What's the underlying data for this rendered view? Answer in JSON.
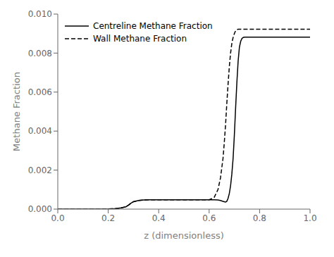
{
  "chart_data": {
    "type": "line",
    "xlabel": "z (dimensionless)",
    "ylabel": "Methane Fraction",
    "xlim": [
      0.0,
      1.0
    ],
    "ylim": [
      0.0,
      0.01
    ],
    "xticks": [
      {
        "value": 0.0,
        "label": "0.0"
      },
      0.2,
      0.4,
      0.6,
      0.8,
      {
        "value": 1.0,
        "label": "1.0"
      }
    ],
    "yticks": [
      {
        "value": 0.0,
        "label": "0.000"
      },
      {
        "value": 0.002,
        "label": "0.002"
      },
      {
        "value": 0.004,
        "label": "0.004"
      },
      {
        "value": 0.006,
        "label": "0.006"
      },
      {
        "value": 0.008,
        "label": "0.008"
      },
      {
        "value": 0.01,
        "label": "0.010"
      }
    ],
    "grid": false,
    "legend": "upper left",
    "series": [
      {
        "name": "Centreline Methane Fraction",
        "color": "#000000",
        "line_style": "solid",
        "x": [
          0.0,
          0.05,
          0.1,
          0.15,
          0.2,
          0.23,
          0.25,
          0.27,
          0.28,
          0.29,
          0.3,
          0.32,
          0.34,
          0.36,
          0.4,
          0.45,
          0.5,
          0.55,
          0.58,
          0.6,
          0.62,
          0.635,
          0.645,
          0.655,
          0.66,
          0.665,
          0.67,
          0.675,
          0.68,
          0.685,
          0.69,
          0.695,
          0.7,
          0.705,
          0.71,
          0.715,
          0.72,
          0.725,
          0.73,
          0.735,
          0.74,
          0.745,
          0.75,
          0.755,
          0.76,
          0.77,
          0.78,
          0.8,
          0.85,
          0.9,
          1.0
        ],
        "values": [
          0.0,
          0.0,
          0.0,
          0.0,
          1e-05,
          3e-05,
          6e-05,
          0.00012,
          0.0002,
          0.0003,
          0.00038,
          0.00044,
          0.00047,
          0.00048,
          0.00048,
          0.00048,
          0.00048,
          0.00048,
          0.00048,
          0.00048,
          0.00048,
          0.00047,
          0.00044,
          0.0004,
          0.00038,
          0.00036,
          0.0004,
          0.00055,
          0.0008,
          0.0012,
          0.0018,
          0.0026,
          0.0038,
          0.0052,
          0.0065,
          0.0076,
          0.0083,
          0.0086,
          0.00875,
          0.0088,
          0.00882,
          0.00882,
          0.00882,
          0.00882,
          0.00882,
          0.00882,
          0.00882,
          0.00882,
          0.00882,
          0.00882,
          0.00882
        ]
      },
      {
        "name": "Wall Methane Fraction",
        "color": "#000000",
        "line_style": "dashed",
        "x": [
          0.0,
          0.05,
          0.1,
          0.15,
          0.2,
          0.23,
          0.25,
          0.27,
          0.28,
          0.29,
          0.3,
          0.32,
          0.34,
          0.36,
          0.4,
          0.45,
          0.5,
          0.55,
          0.58,
          0.6,
          0.62,
          0.635,
          0.645,
          0.655,
          0.66,
          0.665,
          0.67,
          0.675,
          0.68,
          0.685,
          0.69,
          0.695,
          0.7,
          0.705,
          0.71,
          0.715,
          0.72,
          0.725,
          0.73,
          0.735,
          0.74,
          0.75,
          0.76,
          0.77,
          0.78,
          0.8,
          0.85,
          0.9,
          1.0
        ],
        "values": [
          0.0,
          0.0,
          0.0,
          0.0,
          1e-05,
          3e-05,
          6e-05,
          0.00012,
          0.0002,
          0.0003,
          0.00038,
          0.00044,
          0.00047,
          0.00048,
          0.00048,
          0.00048,
          0.00048,
          0.00048,
          0.00048,
          0.00048,
          0.0006,
          0.001,
          0.0016,
          0.0026,
          0.0034,
          0.0043,
          0.0054,
          0.0064,
          0.0073,
          0.008,
          0.0085,
          0.0088,
          0.009,
          0.00915,
          0.0092,
          0.00922,
          0.00922,
          0.00922,
          0.00922,
          0.00922,
          0.00922,
          0.00922,
          0.00922,
          0.00922,
          0.00922,
          0.00922,
          0.00922,
          0.00922,
          0.00922
        ]
      }
    ]
  }
}
